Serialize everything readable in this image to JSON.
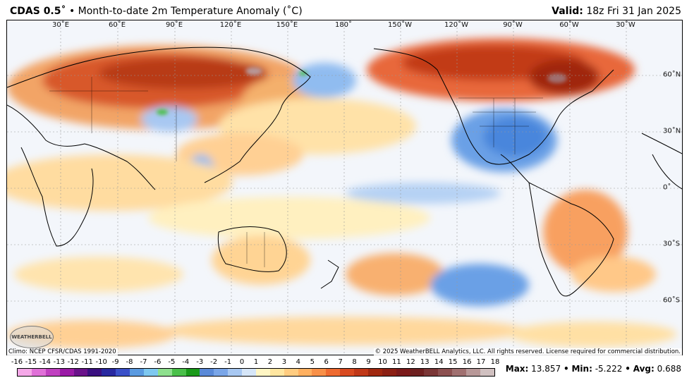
{
  "header": {
    "product": "CDAS 0.5",
    "product_suffix": "˚",
    "title": "• Month-to-date 2m Temperature Anomaly (˚C)",
    "valid_label": "Valid:",
    "valid_time": "18z Fri 31 Jan 2025"
  },
  "axes": {
    "lon_labels": [
      "30˚E",
      "60˚E",
      "90˚E",
      "120˚E",
      "150˚E",
      "180˚",
      "150˚W",
      "120˚W",
      "90˚W",
      "60˚W",
      "30˚W"
    ],
    "lat_labels": [
      "60˚N",
      "30˚N",
      "0˚",
      "30˚S",
      "60˚S"
    ]
  },
  "footer": {
    "climo": "Climo: NCEP CFSR/CDAS 1991-2020",
    "copyright": "© 2025 WeatherBELL Analytics, LLC. All rights reserved. License required for commercial distribution.",
    "logo_text": "WEATHERBELL"
  },
  "colorbar": {
    "ticks": [
      "-16",
      "-15",
      "-14",
      "-13",
      "-12",
      "-11",
      "-10",
      "-9",
      "-8",
      "-7",
      "-6",
      "-5",
      "-4",
      "-3",
      "-2",
      "-1",
      "0",
      "1",
      "2",
      "3",
      "4",
      "5",
      "6",
      "7",
      "8",
      "9",
      "10",
      "11",
      "12",
      "13",
      "14",
      "15",
      "16",
      "17",
      "18"
    ],
    "colors": [
      "#f5a8e8",
      "#e070d8",
      "#c040c0",
      "#9a1aa6",
      "#6a128a",
      "#3a1080",
      "#2828a0",
      "#3a50c8",
      "#5a9ae0",
      "#7ec8f0",
      "#8ee08e",
      "#4ac04a",
      "#1a9a1a",
      "#5a8ad8",
      "#7aa6e8",
      "#a8c8f2",
      "#d6e6f8",
      "#fff6c4",
      "#ffe6a0",
      "#ffcc80",
      "#ffb060",
      "#f89048",
      "#ee6a30",
      "#d84a20",
      "#c03818",
      "#a02810",
      "#8c2014",
      "#7a1a1a",
      "#6e2020",
      "#7a3636",
      "#8c5050",
      "#a07070",
      "#b89898",
      "#d0c0c0"
    ]
  },
  "stats": {
    "max_label": "Max:",
    "max_value": "13.857",
    "min_label": "Min:",
    "min_value": "-5.222",
    "avg_label": "Avg:",
    "avg_value": "0.688"
  }
}
